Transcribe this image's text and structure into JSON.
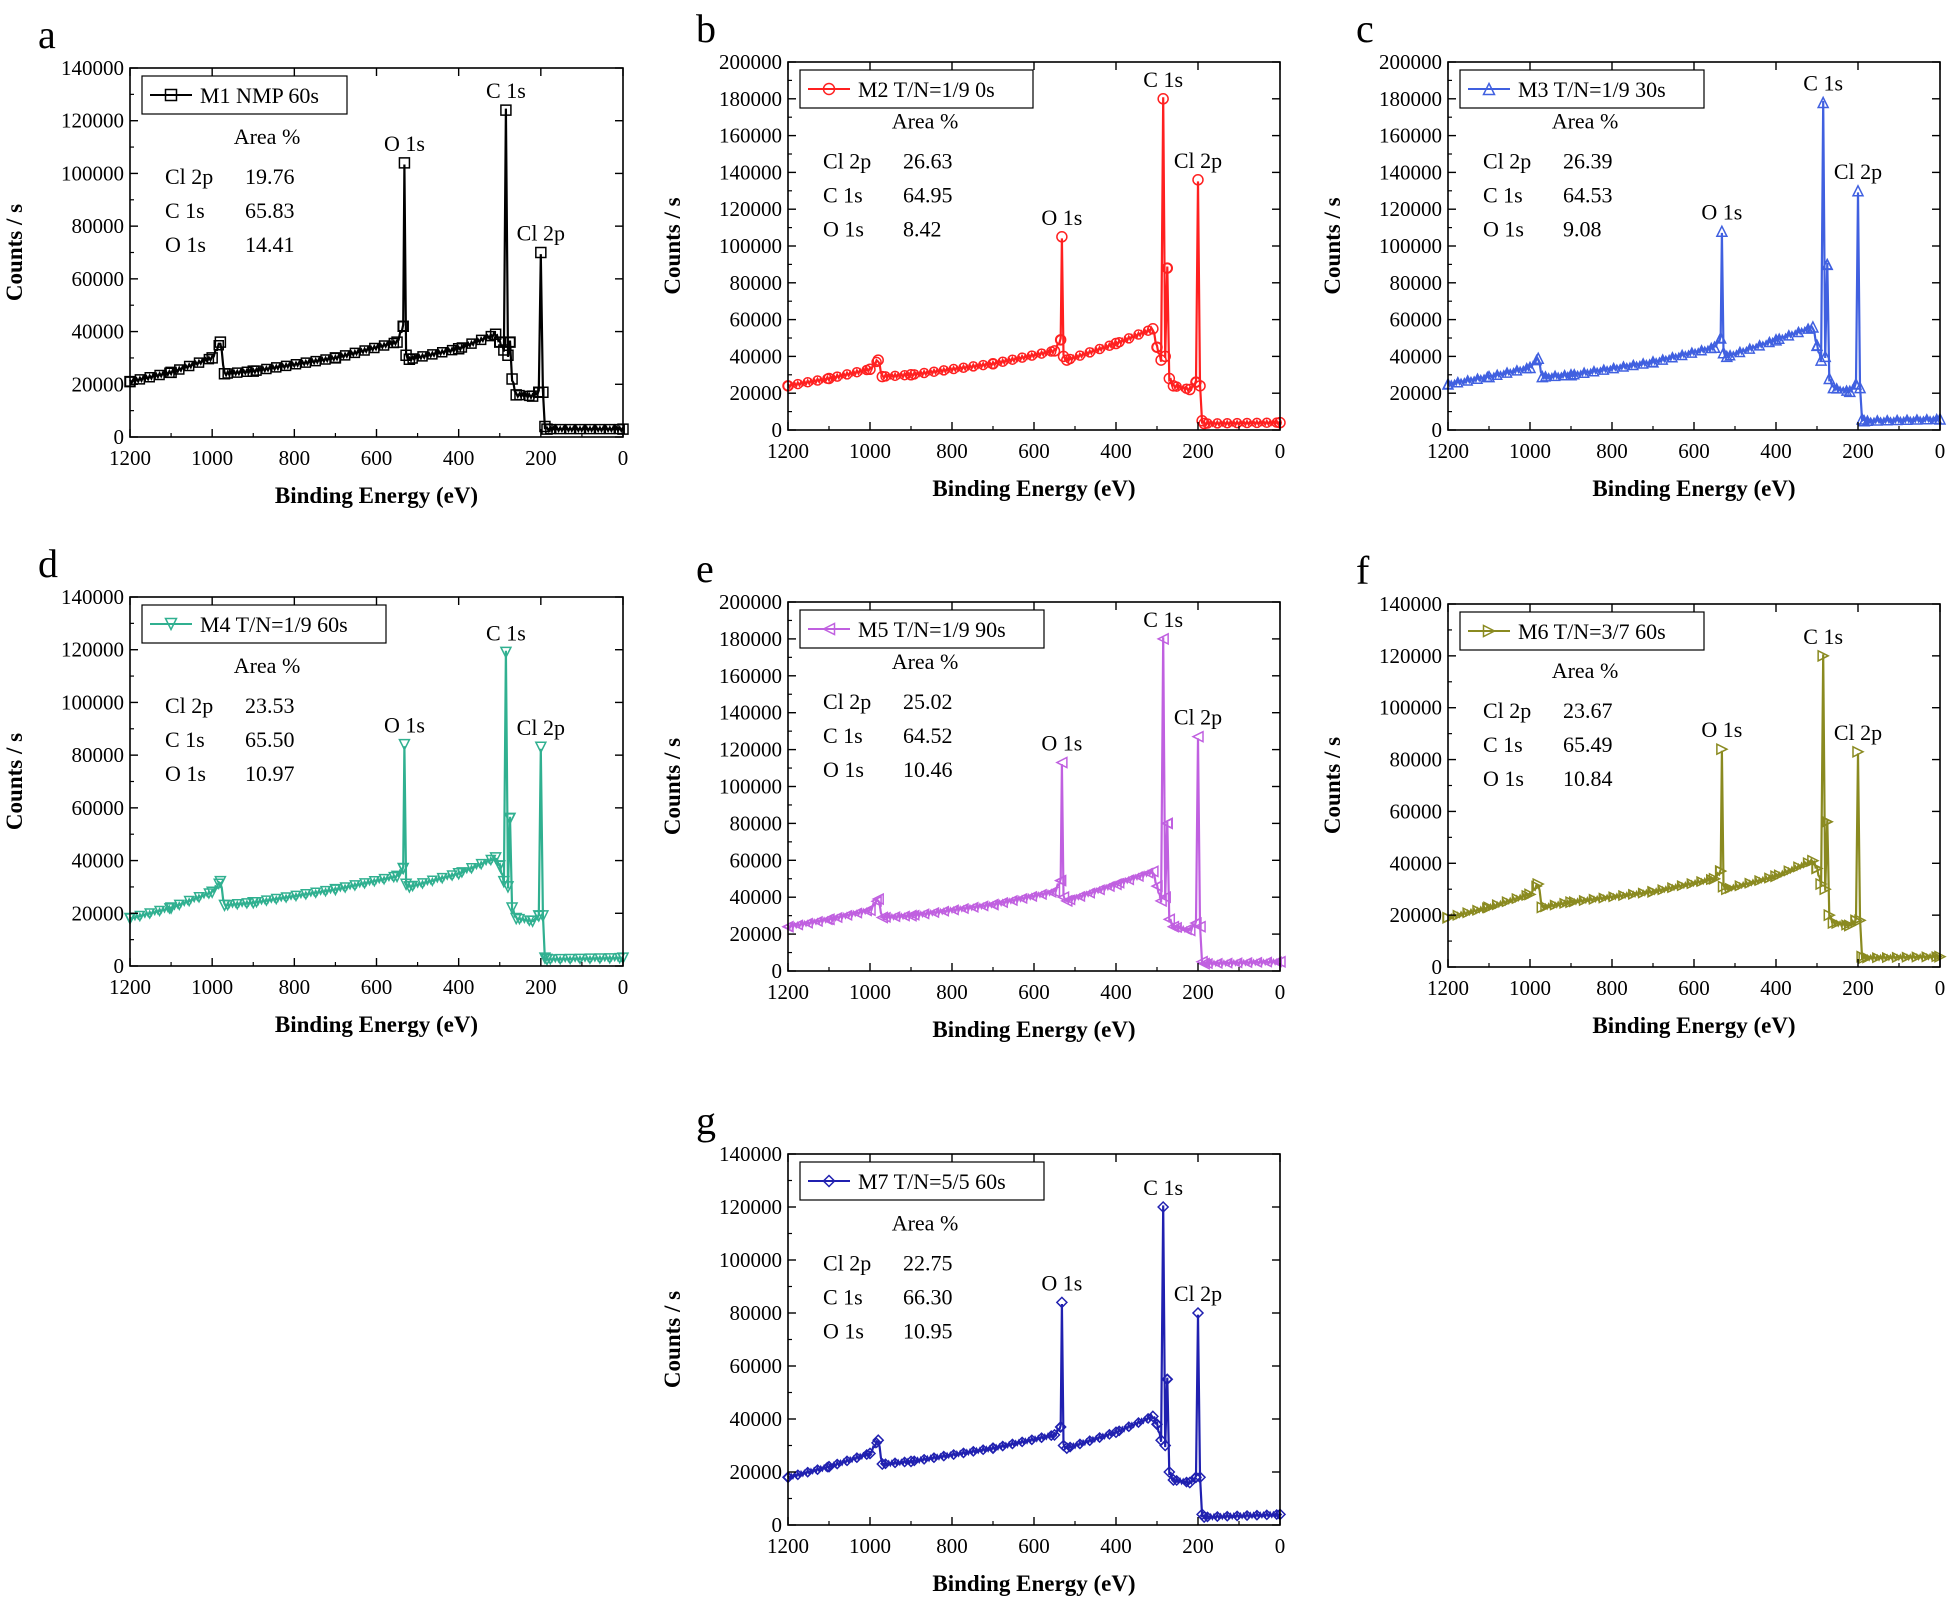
{
  "chart_data": [
    {
      "panel": "a",
      "type": "line",
      "color": "#000000",
      "marker": "square",
      "legend": "M1 NMP 60s",
      "xlabel": "Binding Energy (eV)",
      "ylabel": "Counts / s",
      "xlim": [
        1200,
        0
      ],
      "ylim": [
        0,
        140000
      ],
      "xticks": [
        1200,
        1000,
        800,
        600,
        400,
        200,
        0
      ],
      "yticks": [
        0,
        20000,
        40000,
        60000,
        80000,
        100000,
        120000,
        140000
      ],
      "area_table": {
        "title": "Area %",
        "rows": [
          [
            "Cl 2p",
            "19.76"
          ],
          [
            "C  1s",
            "65.83"
          ],
          [
            "O  1s",
            "14.41"
          ]
        ]
      },
      "peak_labels": [
        {
          "text": "O 1s",
          "x": 532,
          "y": 104000
        },
        {
          "text": "C 1s",
          "x": 285,
          "y": 124000
        },
        {
          "text": "Cl 2p",
          "x": 200,
          "y": 70000
        }
      ],
      "x": [
        1200,
        1100,
        1000,
        980,
        970,
        900,
        700,
        550,
        535,
        532,
        528,
        520,
        400,
        310,
        300,
        290,
        285,
        280,
        275,
        270,
        260,
        220,
        205,
        200,
        195,
        190,
        185,
        0
      ],
      "y": [
        21000,
        24500,
        30000,
        36000,
        24000,
        25000,
        30000,
        36000,
        42000,
        104000,
        31000,
        29500,
        33500,
        39000,
        36000,
        33000,
        124000,
        31000,
        36000,
        22000,
        16000,
        15500,
        17000,
        70000,
        17000,
        4000,
        3000,
        3000
      ]
    },
    {
      "panel": "b",
      "type": "line",
      "color": "#ff2020",
      "marker": "circle",
      "legend": "M2 T/N=1/9 0s",
      "xlabel": "Binding Energy (eV)",
      "ylabel": "Counts / s",
      "xlim": [
        1200,
        0
      ],
      "ylim": [
        0,
        200000
      ],
      "xticks": [
        1200,
        1000,
        800,
        600,
        400,
        200,
        0
      ],
      "yticks": [
        0,
        20000,
        40000,
        60000,
        80000,
        100000,
        120000,
        140000,
        160000,
        180000,
        200000
      ],
      "area_table": {
        "title": "Area %",
        "rows": [
          [
            "Cl 2p",
            "26.63"
          ],
          [
            "C  1s",
            "64.95"
          ],
          [
            "O  1s",
            "8.42"
          ]
        ]
      },
      "peak_labels": [
        {
          "text": "C 1s",
          "x": 285,
          "y": 180000
        },
        {
          "text": "Cl 2p",
          "x": 200,
          "y": 136000
        },
        {
          "text": "O 1s",
          "x": 532,
          "y": 105000
        }
      ],
      "x": [
        1200,
        1100,
        1000,
        980,
        970,
        900,
        700,
        550,
        535,
        532,
        528,
        520,
        400,
        310,
        300,
        290,
        285,
        280,
        275,
        270,
        260,
        220,
        205,
        200,
        195,
        190,
        185,
        0
      ],
      "y": [
        24000,
        28000,
        33000,
        38000,
        29000,
        30000,
        36000,
        43000,
        49000,
        105000,
        40000,
        38000,
        47000,
        55000,
        45000,
        38000,
        180000,
        40000,
        88000,
        28000,
        24000,
        22000,
        26000,
        136000,
        24000,
        5000,
        3500,
        4000
      ]
    },
    {
      "panel": "c",
      "type": "line",
      "color": "#4060e0",
      "marker": "triangle-up",
      "legend": "M3 T/N=1/9 30s",
      "xlabel": "Binding Energy (eV)",
      "ylabel": "Counts / s",
      "xlim": [
        1200,
        0
      ],
      "ylim": [
        0,
        200000
      ],
      "xticks": [
        1200,
        1000,
        800,
        600,
        400,
        200,
        0
      ],
      "yticks": [
        0,
        20000,
        40000,
        60000,
        80000,
        100000,
        120000,
        140000,
        160000,
        180000,
        200000
      ],
      "area_table": {
        "title": "Area %",
        "rows": [
          [
            "Cl 2p",
            "26.39"
          ],
          [
            "C  1s",
            "64.53"
          ],
          [
            "O  1s",
            "9.08"
          ]
        ]
      },
      "peak_labels": [
        {
          "text": "C 1s",
          "x": 285,
          "y": 178000
        },
        {
          "text": "Cl 2p",
          "x": 200,
          "y": 130000
        },
        {
          "text": "O 1s",
          "x": 532,
          "y": 108000
        }
      ],
      "x": [
        1200,
        1100,
        1000,
        980,
        970,
        900,
        700,
        550,
        535,
        532,
        528,
        520,
        400,
        310,
        300,
        290,
        285,
        280,
        275,
        270,
        260,
        220,
        205,
        200,
        195,
        190,
        185,
        0
      ],
      "y": [
        25000,
        29000,
        34000,
        39000,
        29000,
        30000,
        37000,
        45000,
        50000,
        108000,
        42000,
        40000,
        49000,
        56000,
        46000,
        38000,
        178000,
        40000,
        90000,
        28000,
        23000,
        21000,
        25000,
        130000,
        23000,
        6000,
        5000,
        6000
      ]
    },
    {
      "panel": "d",
      "type": "line",
      "color": "#30b090",
      "marker": "triangle-down",
      "legend": "M4 T/N=1/9 60s",
      "xlabel": "Binding Energy (eV)",
      "ylabel": "Counts / s",
      "xlim": [
        1200,
        0
      ],
      "ylim": [
        0,
        140000
      ],
      "xticks": [
        1200,
        1000,
        800,
        600,
        400,
        200,
        0
      ],
      "yticks": [
        0,
        20000,
        40000,
        60000,
        80000,
        100000,
        120000,
        140000
      ],
      "area_table": {
        "title": "Area %",
        "rows": [
          [
            "Cl 2p",
            "23.53"
          ],
          [
            "C  1s",
            "65.50"
          ],
          [
            "O  1s",
            "10.97"
          ]
        ]
      },
      "peak_labels": [
        {
          "text": "C 1s",
          "x": 285,
          "y": 119000
        },
        {
          "text": "O 1s",
          "x": 532,
          "y": 84000
        },
        {
          "text": "Cl 2p",
          "x": 200,
          "y": 83000
        }
      ],
      "x": [
        1200,
        1100,
        1000,
        980,
        970,
        900,
        700,
        550,
        535,
        532,
        528,
        520,
        400,
        310,
        300,
        290,
        285,
        280,
        275,
        270,
        260,
        220,
        205,
        200,
        195,
        190,
        185,
        0
      ],
      "y": [
        18000,
        22000,
        28000,
        32000,
        23000,
        24000,
        29000,
        34000,
        37000,
        84000,
        31000,
        30000,
        35000,
        41000,
        38000,
        32000,
        119000,
        30000,
        56000,
        22000,
        18000,
        17000,
        19000,
        83000,
        19000,
        3000,
        2500,
        3000
      ]
    },
    {
      "panel": "e",
      "type": "line",
      "color": "#c060e0",
      "marker": "triangle-left",
      "legend": "M5 T/N=1/9 90s",
      "xlabel": "Binding Energy (eV)",
      "ylabel": "Counts / s",
      "xlim": [
        1200,
        0
      ],
      "ylim": [
        0,
        200000
      ],
      "xticks": [
        1200,
        1000,
        800,
        600,
        400,
        200,
        0
      ],
      "yticks": [
        0,
        20000,
        40000,
        60000,
        80000,
        100000,
        120000,
        140000,
        160000,
        180000,
        200000
      ],
      "area_table": {
        "title": "Area %",
        "rows": [
          [
            "Cl 2p",
            "25.02"
          ],
          [
            "C  1s",
            "64.52"
          ],
          [
            "O  1s",
            "10.46"
          ]
        ]
      },
      "peak_labels": [
        {
          "text": "C 1s",
          "x": 285,
          "y": 180000
        },
        {
          "text": "Cl 2p",
          "x": 200,
          "y": 127000
        },
        {
          "text": "O 1s",
          "x": 532,
          "y": 113000
        }
      ],
      "x": [
        1200,
        1100,
        1000,
        980,
        970,
        900,
        700,
        550,
        535,
        532,
        528,
        520,
        400,
        310,
        300,
        290,
        285,
        280,
        275,
        270,
        260,
        220,
        205,
        200,
        195,
        190,
        185,
        0
      ],
      "y": [
        24000,
        28000,
        33000,
        39000,
        29000,
        30000,
        36000,
        43000,
        49000,
        113000,
        40000,
        38000,
        47000,
        54000,
        46000,
        38000,
        180000,
        40000,
        80000,
        28000,
        24000,
        22000,
        26000,
        127000,
        24000,
        5000,
        4000,
        5000
      ]
    },
    {
      "panel": "f",
      "type": "line",
      "color": "#8a8a20",
      "marker": "triangle-right",
      "legend": "M6 T/N=3/7 60s",
      "xlabel": "Binding Energy (eV)",
      "ylabel": "Counts / s",
      "xlim": [
        1200,
        0
      ],
      "ylim": [
        0,
        140000
      ],
      "xticks": [
        1200,
        1000,
        800,
        600,
        400,
        200,
        0
      ],
      "yticks": [
        0,
        20000,
        40000,
        60000,
        80000,
        100000,
        120000,
        140000
      ],
      "area_table": {
        "title": "Area %",
        "rows": [
          [
            "Cl 2p",
            "23.67"
          ],
          [
            "C  1s",
            "65.49"
          ],
          [
            "O  1s",
            "10.84"
          ]
        ]
      },
      "peak_labels": [
        {
          "text": "C 1s",
          "x": 285,
          "y": 120000
        },
        {
          "text": "O 1s",
          "x": 532,
          "y": 84000
        },
        {
          "text": "Cl 2p",
          "x": 200,
          "y": 83000
        }
      ],
      "x": [
        1200,
        1100,
        1000,
        980,
        970,
        900,
        700,
        550,
        535,
        532,
        528,
        520,
        400,
        310,
        300,
        290,
        285,
        280,
        275,
        270,
        260,
        220,
        205,
        200,
        195,
        190,
        185,
        0
      ],
      "y": [
        19000,
        23000,
        28000,
        32000,
        23000,
        25000,
        29000,
        34000,
        37000,
        84000,
        31000,
        30000,
        35000,
        41000,
        38000,
        32000,
        120000,
        30000,
        56000,
        20000,
        17000,
        16000,
        18000,
        83000,
        18000,
        4000,
        3500,
        4000
      ]
    },
    {
      "panel": "g",
      "type": "line",
      "color": "#2020b0",
      "marker": "diamond",
      "legend": "M7 T/N=5/5 60s",
      "xlabel": "Binding Energy (eV)",
      "ylabel": "Counts / s",
      "xlim": [
        1200,
        0
      ],
      "ylim": [
        0,
        140000
      ],
      "xticks": [
        1200,
        1000,
        800,
        600,
        400,
        200,
        0
      ],
      "yticks": [
        0,
        20000,
        40000,
        60000,
        80000,
        100000,
        120000,
        140000
      ],
      "area_table": {
        "title": "Area %",
        "rows": [
          [
            "Cl 2p",
            "22.75"
          ],
          [
            "C  1s",
            "66.30"
          ],
          [
            "O  1s",
            "10.95"
          ]
        ]
      },
      "peak_labels": [
        {
          "text": "C 1s",
          "x": 285,
          "y": 120000
        },
        {
          "text": "O 1s",
          "x": 532,
          "y": 84000
        },
        {
          "text": "Cl 2p",
          "x": 200,
          "y": 80000
        }
      ],
      "x": [
        1200,
        1100,
        1000,
        980,
        970,
        900,
        700,
        550,
        535,
        532,
        528,
        520,
        400,
        310,
        300,
        290,
        285,
        280,
        275,
        270,
        260,
        220,
        205,
        200,
        195,
        190,
        185,
        0
      ],
      "y": [
        18000,
        22000,
        27000,
        32000,
        23000,
        24000,
        29000,
        34000,
        37000,
        84000,
        30000,
        29000,
        35000,
        41000,
        38000,
        32000,
        120000,
        30000,
        55000,
        20000,
        17000,
        16000,
        18000,
        80000,
        18000,
        4000,
        3000,
        4000
      ]
    }
  ]
}
